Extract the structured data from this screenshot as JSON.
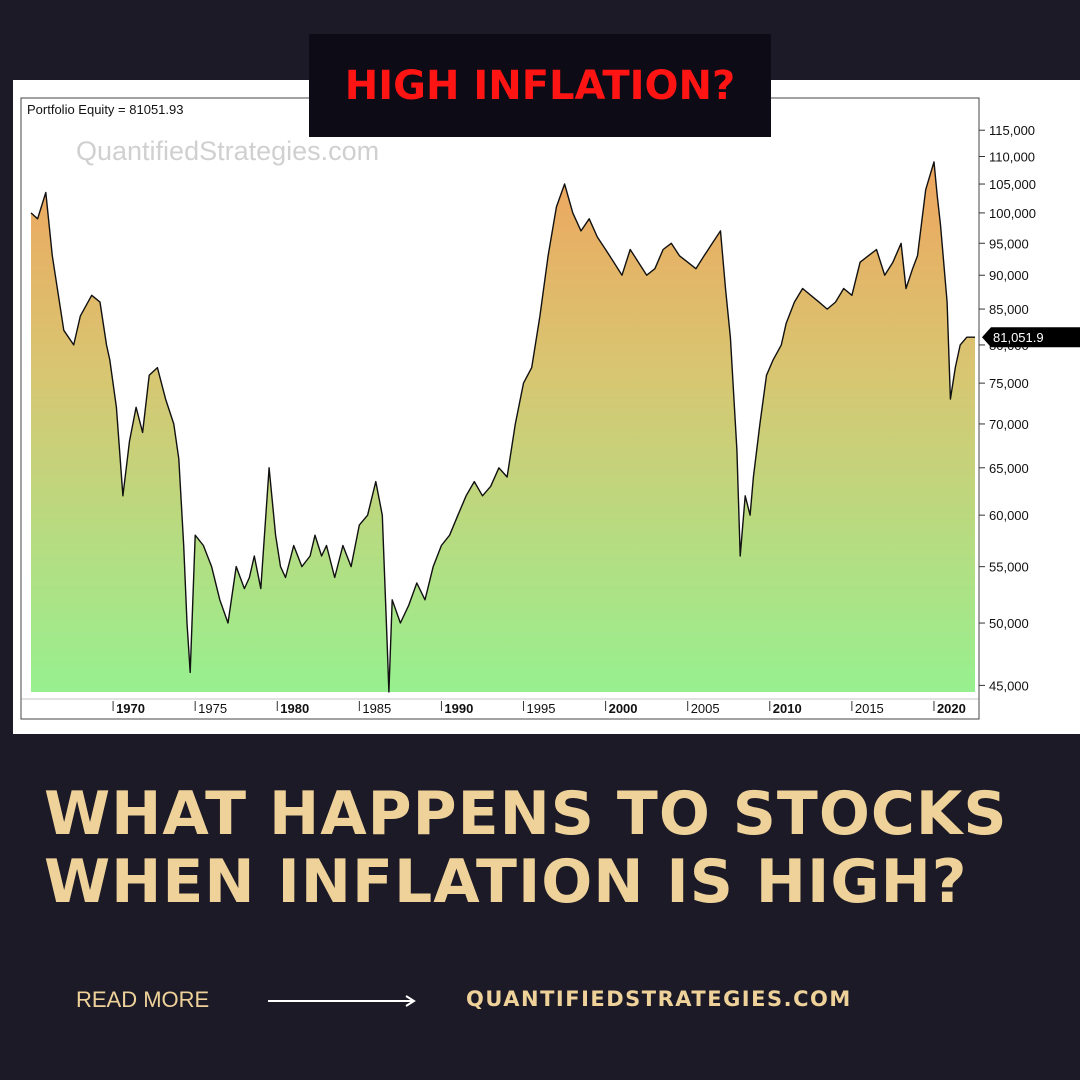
{
  "badge": {
    "text": "HIGH INFLATION?"
  },
  "headline": {
    "line1": "WHAT HAPPENS TO STOCKS",
    "line2": "WHEN INFLATION IS HIGH?"
  },
  "footer": {
    "read_more": "READ MORE",
    "site": "QUANTIFIEDSTRATEGIES.COM"
  },
  "colors": {
    "background": "#1b1a26",
    "badge_bg": "#0d0b16",
    "badge_text": "#ff1414",
    "headline_text": "#efd29a",
    "fill_top": "#eea55e",
    "fill_bottom": "#97f08f"
  },
  "icons": {
    "arrow": "right-arrow-icon"
  },
  "chart_data": {
    "type": "area",
    "title": "Portfolio Equity = 81051.93",
    "watermark": "QuantifiedStrategies.com",
    "last_value_label": "81,051.9",
    "last_value": 81051.93,
    "xlabel": "",
    "ylabel": "",
    "y_scale": "log",
    "ylim": [
      44500,
      117000
    ],
    "xlim": [
      1965.0,
      2022.5
    ],
    "x_ticks": [
      1970,
      1975,
      1980,
      1985,
      1990,
      1995,
      2000,
      2005,
      2010,
      2015,
      2020
    ],
    "x_tick_labels": [
      "1970",
      "1975",
      "1980",
      "1985",
      "1990",
      "1995",
      "2000",
      "2005",
      "2010",
      "2015",
      "2020"
    ],
    "y_ticks": [
      45000,
      50000,
      55000,
      60000,
      65000,
      70000,
      75000,
      80000,
      85000,
      90000,
      95000,
      100000,
      105000,
      110000,
      115000
    ],
    "y_tick_labels": [
      "45,000",
      "50,000",
      "55,000",
      "60,000",
      "65,000",
      "70,000",
      "75,000",
      "80,000",
      "85,000",
      "90,000",
      "95,000",
      "100,000",
      "105,000",
      "110,000",
      "115,000"
    ],
    "grid": false,
    "series": [
      {
        "x": [
          1965.0,
          1965.4,
          1965.9,
          1966.3,
          1967.0,
          1967.6,
          1968.0,
          1968.7,
          1969.2,
          1969.6,
          1969.8,
          1970.2,
          1970.6,
          1971.0,
          1971.4,
          1971.8,
          1972.2,
          1972.7,
          1973.2,
          1973.7,
          1974.0,
          1974.3,
          1974.5,
          1974.7,
          1975.0,
          1975.5,
          1976.0,
          1976.5,
          1977.0,
          1977.5,
          1978.0,
          1978.3,
          1978.6,
          1979.0,
          1979.5,
          1979.9,
          1980.2,
          1980.5,
          1981.0,
          1981.5,
          1982.0,
          1982.3,
          1982.7,
          1983.0,
          1983.5,
          1984.0,
          1984.5,
          1985.0,
          1985.5,
          1986.0,
          1986.4,
          1986.7,
          1986.8,
          1987.0,
          1987.5,
          1988.0,
          1988.5,
          1989.0,
          1989.5,
          1990.0,
          1990.5,
          1991.0,
          1991.5,
          1992.0,
          1992.5,
          1993.0,
          1993.5,
          1994.0,
          1994.5,
          1995.0,
          1995.5,
          1996.0,
          1996.5,
          1997.0,
          1997.5,
          1998.0,
          1998.5,
          1999.0,
          1999.5,
          2000.0,
          2000.5,
          2001.0,
          2001.5,
          2002.0,
          2002.5,
          2003.0,
          2003.5,
          2004.0,
          2004.5,
          2005.0,
          2005.5,
          2006.0,
          2006.5,
          2007.0,
          2007.3,
          2007.6,
          2008.0,
          2008.2,
          2008.5,
          2008.8,
          2009.0,
          2009.4,
          2009.8,
          2010.2,
          2010.7,
          2011.0,
          2011.5,
          2012.0,
          2012.5,
          2013.0,
          2013.5,
          2014.0,
          2014.5,
          2015.0,
          2015.5,
          2016.0,
          2016.5,
          2017.0,
          2017.5,
          2018.0,
          2018.3,
          2018.7,
          2019.0,
          2019.5,
          2019.8,
          2020.0,
          2020.2,
          2020.4,
          2020.8,
          2021.0,
          2021.3,
          2021.6,
          2022.0,
          2022.3,
          2022.5
        ],
        "y": [
          100000,
          99000,
          103500,
          93000,
          82000,
          80000,
          84000,
          87000,
          86000,
          80000,
          78000,
          72000,
          62000,
          68000,
          72000,
          69000,
          76000,
          77000,
          73000,
          70000,
          66000,
          57000,
          50000,
          46000,
          58000,
          57000,
          55000,
          52000,
          50000,
          55000,
          53000,
          54000,
          56000,
          53000,
          65000,
          58000,
          55000,
          54000,
          57000,
          55000,
          56000,
          58000,
          56000,
          57000,
          54000,
          57000,
          55000,
          59000,
          60000,
          63500,
          60000,
          48000,
          44500,
          52000,
          50000,
          51500,
          53500,
          52000,
          55000,
          57000,
          58000,
          60000,
          62000,
          63500,
          62000,
          63000,
          65000,
          64000,
          70000,
          75000,
          77000,
          84000,
          93000,
          101000,
          105000,
          100000,
          97000,
          99000,
          96000,
          94000,
          92000,
          90000,
          94000,
          92000,
          90000,
          91000,
          94000,
          95000,
          93000,
          92000,
          91000,
          93000,
          95000,
          97000,
          88000,
          81000,
          67000,
          56000,
          62000,
          60000,
          64000,
          70000,
          76000,
          78000,
          80000,
          83000,
          86000,
          88000,
          87000,
          86000,
          85000,
          86000,
          88000,
          87000,
          92000,
          93000,
          94000,
          90000,
          92000,
          95000,
          88000,
          91000,
          93000,
          104000,
          107000,
          109000,
          103000,
          98000,
          86000,
          73000,
          77000,
          80000,
          81051.93,
          81051.93,
          81051.93
        ]
      }
    ]
  }
}
